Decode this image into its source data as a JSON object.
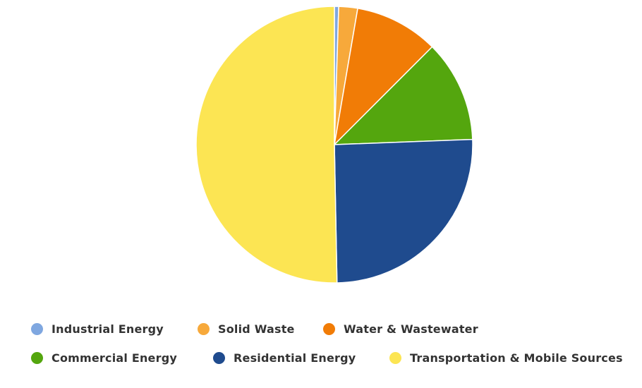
{
  "chart_data": {
    "type": "pie",
    "title": "",
    "categories": [
      "Industrial Energy",
      "Solid Waste",
      "Water & Wastewater",
      "Commercial Energy",
      "Residential Energy",
      "Transportation & Mobile Sources"
    ],
    "values": [
      0.5,
      2.2,
      9.8,
      11.9,
      25.3,
      50.3
    ],
    "colors": [
      "#7fa7e0",
      "#f7a93b",
      "#f17c06",
      "#54a60e",
      "#1f4b8e",
      "#fce553"
    ],
    "legend_position": "bottom",
    "start_angle_deg": 0,
    "direction": "clockwise"
  },
  "legend": {
    "items": [
      {
        "label": "Industrial Energy",
        "color": "#7fa7e0"
      },
      {
        "label": "Solid Waste",
        "color": "#f7a93b"
      },
      {
        "label": "Water & Wastewater",
        "color": "#f17c06"
      },
      {
        "label": "Commercial Energy",
        "color": "#54a60e"
      },
      {
        "label": "Residential Energy",
        "color": "#1f4b8e"
      },
      {
        "label": "Transportation & Mobile Sources",
        "color": "#fce553"
      }
    ]
  }
}
